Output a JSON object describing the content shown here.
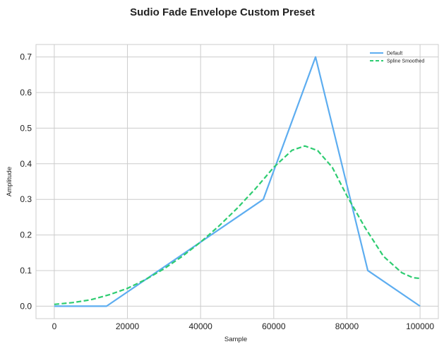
{
  "chart_data": {
    "type": "line",
    "title": "Sudio Fade Envelope Custom Preset",
    "xlabel": "Sample",
    "ylabel": "Amplitude",
    "xlim": [
      -5000,
      105000
    ],
    "ylim": [
      -0.035,
      0.735
    ],
    "xticks": [
      0,
      20000,
      40000,
      60000,
      80000,
      100000
    ],
    "xtick_labels": [
      "0",
      "20000",
      "40000",
      "60000",
      "80000",
      "100000"
    ],
    "yticks": [
      0.0,
      0.1,
      0.2,
      0.3,
      0.4,
      0.5,
      0.6,
      0.7
    ],
    "ytick_labels": [
      "0.0",
      "0.1",
      "0.2",
      "0.3",
      "0.4",
      "0.5",
      "0.6",
      "0.7"
    ],
    "grid": true,
    "legend_position": "top-right",
    "series": [
      {
        "name": "Default",
        "color": "#5DADF0",
        "style": "solid",
        "x": [
          0,
          14286,
          28571,
          42857,
          57143,
          71429,
          85714,
          100000
        ],
        "y": [
          0.0,
          0.0,
          0.1,
          0.2,
          0.3,
          0.7,
          0.1,
          0.0
        ]
      },
      {
        "name": "Spline Smoothed",
        "color": "#2ECC71",
        "style": "dashed",
        "x": [
          0,
          5000,
          10000,
          15000,
          20000,
          25000,
          30000,
          35000,
          40000,
          45000,
          50000,
          55000,
          60000,
          65000,
          68500,
          72000,
          76000,
          80000,
          85000,
          90000,
          95000,
          98000,
          100000
        ],
        "y": [
          0.005,
          0.01,
          0.018,
          0.032,
          0.05,
          0.075,
          0.105,
          0.14,
          0.18,
          0.225,
          0.275,
          0.33,
          0.39,
          0.438,
          0.45,
          0.437,
          0.39,
          0.31,
          0.22,
          0.14,
          0.094,
          0.08,
          0.078
        ]
      }
    ]
  }
}
